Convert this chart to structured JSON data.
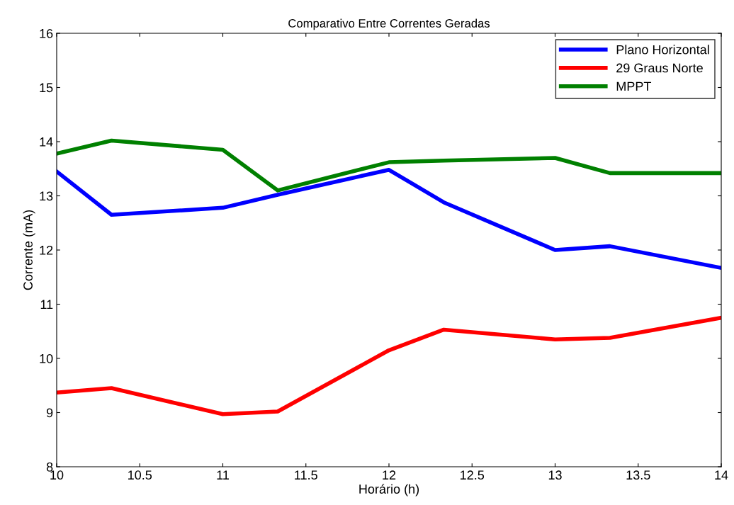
{
  "chart_data": {
    "type": "line",
    "title": "Comparativo Entre Correntes Geradas",
    "xlabel": "Horário (h)",
    "ylabel": "Corrente (mA)",
    "x": [
      10,
      10.33,
      11,
      11.33,
      12,
      12.33,
      13,
      13.33,
      14
    ],
    "series": [
      {
        "name": "Plano Horizontal",
        "color": "#0000ff",
        "values": [
          13.45,
          12.65,
          12.78,
          13.02,
          13.48,
          12.88,
          12.0,
          12.07,
          11.67
        ]
      },
      {
        "name": "29 Graus Norte",
        "color": "#ff0000",
        "values": [
          9.37,
          9.45,
          8.97,
          9.02,
          10.15,
          10.53,
          10.35,
          10.38,
          10.75
        ]
      },
      {
        "name": "MPPT",
        "color": "#008000",
        "values": [
          13.78,
          14.02,
          13.85,
          13.1,
          13.62,
          13.65,
          13.7,
          13.42,
          13.42
        ]
      }
    ],
    "xlim": [
      10,
      14
    ],
    "xticks": [
      10,
      10.5,
      11,
      11.5,
      12,
      12.5,
      13,
      13.5,
      14
    ],
    "ylim": [
      8,
      16
    ],
    "yticks": [
      8,
      9,
      10,
      11,
      12,
      13,
      14,
      15,
      16
    ],
    "grid": false,
    "legend": "top right",
    "marker": "none",
    "line_style": "solid"
  }
}
